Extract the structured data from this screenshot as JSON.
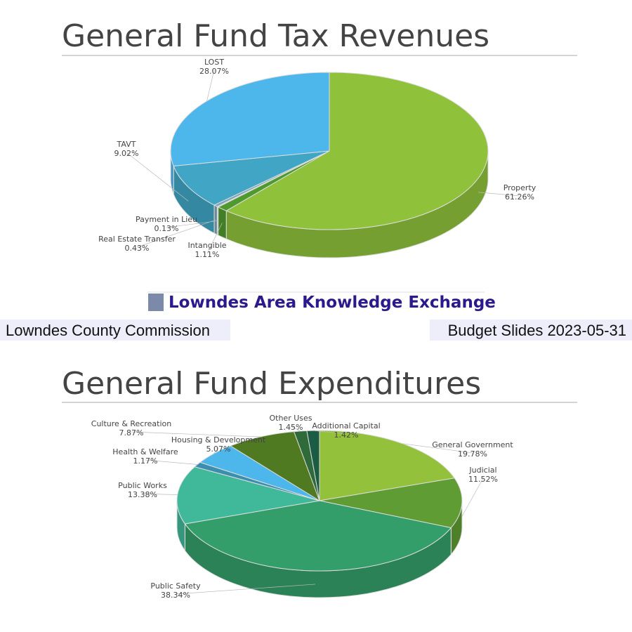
{
  "chart_data": [
    {
      "type": "pie",
      "title": "General Fund Tax Revenues",
      "categories": [
        "Property",
        "Intangible",
        "Payment in Lieu",
        "Real Estate Transfer",
        "TAVT",
        "LOST"
      ],
      "values": [
        61.26,
        1.11,
        0.13,
        0.43,
        9.02,
        28.07
      ],
      "value_labels": [
        "61.26%",
        "1.11%",
        "0.13%",
        "0.43%",
        "9.02%",
        "28.07%"
      ],
      "colors": [
        "#8fc23a",
        "#4f9a2e",
        "#b9cfe0",
        "#7fa6b8",
        "#41a6c6",
        "#4db6ea"
      ]
    },
    {
      "type": "pie",
      "title": "General Fund Expenditures",
      "categories": [
        "General Government",
        "Judicial",
        "Public Safety",
        "Public Works",
        "Health & Welfare",
        "Housing & Development",
        "Culture & Recreation",
        "Other Uses",
        "Additional Capital"
      ],
      "values": [
        19.78,
        11.52,
        38.34,
        13.38,
        1.17,
        5.07,
        7.87,
        1.45,
        1.42
      ],
      "value_labels": [
        "19.78%",
        "11.52%",
        "38.34%",
        "13.38%",
        "1.17%",
        "5.07%",
        "7.87%",
        "1.45%",
        "1.42%"
      ],
      "colors": [
        "#93c13b",
        "#5f9c33",
        "#349e6a",
        "#40b89a",
        "#3a8fb0",
        "#4db6ea",
        "#4f7a22",
        "#2e6a3a",
        "#1d5c44"
      ]
    }
  ],
  "banner": "Lowndes Area Knowledge Exchange",
  "footer_left": "Lowndes County Commission",
  "footer_right": "Budget Slides 2023-05-31"
}
